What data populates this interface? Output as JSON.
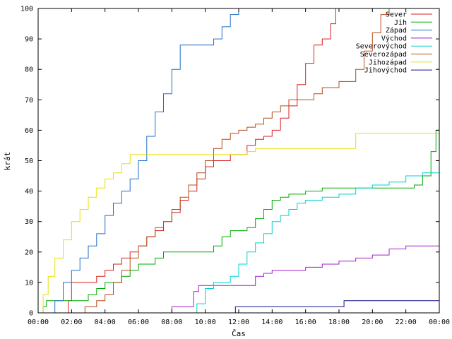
{
  "chart_data": {
    "type": "line",
    "xlabel": "Čas",
    "ylabel": "krát",
    "xlim": [
      0,
      24
    ],
    "ylim": [
      0,
      100
    ],
    "xticks": [
      "00:00",
      "02:00",
      "04:00",
      "06:00",
      "08:00",
      "10:00",
      "12:00",
      "14:00",
      "16:00",
      "18:00",
      "20:00",
      "22:00",
      "00:00"
    ],
    "yticks": [
      0,
      10,
      20,
      30,
      40,
      50,
      60,
      70,
      80,
      90,
      100
    ],
    "grid": false,
    "legend_position": "top-right",
    "series": [
      {
        "name": "Sever",
        "color": "#d62020",
        "points": [
          [
            1.7,
            0
          ],
          [
            1.8,
            4
          ],
          [
            2.0,
            10
          ],
          [
            3.0,
            10
          ],
          [
            3.5,
            12
          ],
          [
            4.0,
            14
          ],
          [
            4.5,
            16
          ],
          [
            5.0,
            18
          ],
          [
            5.5,
            20
          ],
          [
            6.0,
            22
          ],
          [
            6.5,
            25
          ],
          [
            7.0,
            27
          ],
          [
            7.5,
            30
          ],
          [
            8.0,
            33
          ],
          [
            8.5,
            37
          ],
          [
            9.0,
            40
          ],
          [
            9.5,
            44
          ],
          [
            10.0,
            48
          ],
          [
            10.5,
            50
          ],
          [
            11.5,
            52
          ],
          [
            12.0,
            52
          ],
          [
            12.5,
            55
          ],
          [
            13.0,
            57
          ],
          [
            13.5,
            58
          ],
          [
            14.0,
            60
          ],
          [
            14.5,
            64
          ],
          [
            15.0,
            68
          ],
          [
            15.5,
            75
          ],
          [
            16.0,
            82
          ],
          [
            16.5,
            88
          ],
          [
            17.0,
            90
          ],
          [
            17.5,
            95
          ],
          [
            17.8,
            100
          ]
        ]
      },
      {
        "name": "Jih",
        "color": "#00aa00",
        "points": [
          [
            0.0,
            0
          ],
          [
            0.3,
            2
          ],
          [
            0.5,
            4
          ],
          [
            2.5,
            4
          ],
          [
            3.0,
            6
          ],
          [
            3.5,
            8
          ],
          [
            4.0,
            10
          ],
          [
            5.0,
            12
          ],
          [
            5.5,
            14
          ],
          [
            6.0,
            16
          ],
          [
            7.0,
            18
          ],
          [
            7.5,
            20
          ],
          [
            10.5,
            22
          ],
          [
            11.0,
            25
          ],
          [
            11.5,
            27
          ],
          [
            12.5,
            28
          ],
          [
            13.0,
            31
          ],
          [
            13.5,
            34
          ],
          [
            14.0,
            37
          ],
          [
            14.5,
            38
          ],
          [
            15.0,
            39
          ],
          [
            16.0,
            40
          ],
          [
            17.0,
            41
          ],
          [
            22.5,
            42
          ],
          [
            23.0,
            45
          ],
          [
            23.5,
            53
          ],
          [
            23.8,
            60
          ],
          [
            24.0,
            62
          ]
        ]
      },
      {
        "name": "Západ",
        "color": "#1e6fc8",
        "points": [
          [
            0.8,
            0
          ],
          [
            1.0,
            4
          ],
          [
            1.5,
            10
          ],
          [
            2.0,
            14
          ],
          [
            2.5,
            18
          ],
          [
            3.0,
            22
          ],
          [
            3.5,
            26
          ],
          [
            4.0,
            32
          ],
          [
            4.5,
            36
          ],
          [
            5.0,
            40
          ],
          [
            5.5,
            44
          ],
          [
            6.0,
            50
          ],
          [
            6.5,
            58
          ],
          [
            7.0,
            66
          ],
          [
            7.5,
            72
          ],
          [
            8.0,
            80
          ],
          [
            8.5,
            88
          ],
          [
            10.0,
            88
          ],
          [
            10.5,
            90
          ],
          [
            11.0,
            94
          ],
          [
            11.5,
            98
          ],
          [
            12.0,
            100
          ]
        ]
      },
      {
        "name": "Východ",
        "color": "#a020c8",
        "points": [
          [
            7.8,
            0
          ],
          [
            8.0,
            2
          ],
          [
            9.0,
            2
          ],
          [
            9.3,
            7
          ],
          [
            9.6,
            9
          ],
          [
            12.5,
            9
          ],
          [
            13.0,
            12
          ],
          [
            13.5,
            13
          ],
          [
            14.0,
            14
          ],
          [
            16.0,
            15
          ],
          [
            17.0,
            16
          ],
          [
            18.0,
            17
          ],
          [
            19.0,
            18
          ],
          [
            20.0,
            19
          ],
          [
            21.0,
            21
          ],
          [
            22.0,
            22
          ],
          [
            24.0,
            22
          ]
        ]
      },
      {
        "name": "Severovýchod",
        "color": "#00d0d0",
        "points": [
          [
            9.2,
            0
          ],
          [
            9.5,
            3
          ],
          [
            10.0,
            8
          ],
          [
            10.5,
            10
          ],
          [
            11.5,
            12
          ],
          [
            12.0,
            16
          ],
          [
            12.5,
            20
          ],
          [
            13.0,
            23
          ],
          [
            13.5,
            26
          ],
          [
            14.0,
            30
          ],
          [
            14.5,
            32
          ],
          [
            15.0,
            34
          ],
          [
            15.5,
            36
          ],
          [
            16.0,
            37
          ],
          [
            17.0,
            38
          ],
          [
            18.0,
            39
          ],
          [
            19.0,
            41
          ],
          [
            20.0,
            42
          ],
          [
            21.0,
            43
          ],
          [
            22.0,
            45
          ],
          [
            23.0,
            46
          ],
          [
            24.0,
            46
          ]
        ]
      },
      {
        "name": "Severozápad",
        "color": "#b84a18",
        "points": [
          [
            2.5,
            0
          ],
          [
            2.8,
            2
          ],
          [
            3.5,
            4
          ],
          [
            4.0,
            6
          ],
          [
            4.5,
            10
          ],
          [
            5.0,
            14
          ],
          [
            5.5,
            18
          ],
          [
            6.0,
            22
          ],
          [
            6.5,
            25
          ],
          [
            7.0,
            28
          ],
          [
            7.5,
            30
          ],
          [
            8.0,
            34
          ],
          [
            8.5,
            38
          ],
          [
            9.0,
            42
          ],
          [
            9.5,
            46
          ],
          [
            10.0,
            50
          ],
          [
            10.5,
            54
          ],
          [
            11.0,
            57
          ],
          [
            11.5,
            59
          ],
          [
            12.0,
            60
          ],
          [
            12.5,
            61
          ],
          [
            13.0,
            62
          ],
          [
            13.5,
            64
          ],
          [
            14.0,
            66
          ],
          [
            14.5,
            68
          ],
          [
            15.0,
            70
          ],
          [
            16.5,
            72
          ],
          [
            17.0,
            74
          ],
          [
            18.0,
            76
          ],
          [
            19.0,
            80
          ],
          [
            19.5,
            86
          ],
          [
            20.0,
            92
          ],
          [
            20.5,
            98
          ],
          [
            21.0,
            100
          ]
        ]
      },
      {
        "name": "Jihozápad",
        "color": "#e8e000",
        "points": [
          [
            0.0,
            0
          ],
          [
            0.3,
            6
          ],
          [
            0.6,
            12
          ],
          [
            1.0,
            18
          ],
          [
            1.5,
            24
          ],
          [
            2.0,
            30
          ],
          [
            2.5,
            34
          ],
          [
            3.0,
            38
          ],
          [
            3.5,
            41
          ],
          [
            4.0,
            44
          ],
          [
            4.5,
            46
          ],
          [
            5.0,
            49
          ],
          [
            5.5,
            52
          ],
          [
            12.0,
            52
          ],
          [
            12.5,
            53
          ],
          [
            13.0,
            54
          ],
          [
            18.5,
            54
          ],
          [
            19.0,
            59
          ],
          [
            24.0,
            59
          ]
        ]
      },
      {
        "name": "Jihovýchod",
        "color": "#101088",
        "points": [
          [
            11.5,
            0
          ],
          [
            11.8,
            2
          ],
          [
            18.0,
            2
          ],
          [
            18.3,
            4
          ],
          [
            24.0,
            4
          ]
        ]
      }
    ]
  }
}
